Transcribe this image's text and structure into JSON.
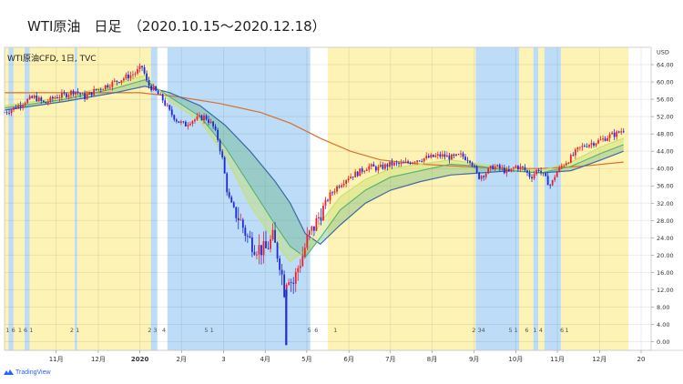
{
  "header": {
    "title": "WTI原油　日足　（2020.10.15～2020.12.18）"
  },
  "chart_label": "WTI原油CFD, 1日, TVC",
  "branding": "TradingView",
  "colors": {
    "blue_band": "#bcdcf8",
    "yellow_band": "#fdf3b5",
    "candle_up": "#e8222e",
    "candle_down": "#1f2bd6",
    "ma_short": "#c7e070",
    "ma_mid": "#59b06f",
    "ma_long": "#3d6aa8",
    "ma_200": "#d8702a"
  },
  "chart_data": {
    "type": "candlestick",
    "title": "",
    "yaxis_unit": "USD",
    "ylim": [
      -2,
      68
    ],
    "yticks": [
      0,
      4,
      8,
      12,
      16,
      20,
      24,
      28,
      32,
      36,
      40,
      44,
      48,
      52,
      56,
      60,
      64
    ],
    "ytick_labels": [
      "0.00",
      "4.00",
      "8.00",
      "12.00",
      "16.00",
      "20.00",
      "24.00",
      "28.00",
      "32.00",
      "36.00",
      "40.00",
      "44.00",
      "48.00",
      "52.00",
      "56.00",
      "60.00",
      "64.00"
    ],
    "xlim": [
      2019.73,
      2021.02
    ],
    "xticks": [
      {
        "label": "11月",
        "x": 2019.833
      },
      {
        "label": "12月",
        "x": 2019.917
      },
      {
        "label": "2020",
        "x": 2020.0
      },
      {
        "label": "2月",
        "x": 2020.083
      },
      {
        "label": "3",
        "x": 2020.167
      },
      {
        "label": "4月",
        "x": 2020.25
      },
      {
        "label": "5月",
        "x": 2020.333
      },
      {
        "label": "6月",
        "x": 2020.417
      },
      {
        "label": "7月",
        "x": 2020.5
      },
      {
        "label": "8月",
        "x": 2020.583
      },
      {
        "label": "9月",
        "x": 2020.667
      },
      {
        "label": "10月",
        "x": 2020.75
      },
      {
        "label": "11月",
        "x": 2020.833
      },
      {
        "label": "12月",
        "x": 2020.917
      },
      {
        "label": "20",
        "x": 2021.0
      }
    ],
    "background_bands": [
      {
        "from": 2019.73,
        "to": 2019.738,
        "color": "yellow"
      },
      {
        "from": 2019.738,
        "to": 2019.748,
        "color": "blue"
      },
      {
        "from": 2019.748,
        "to": 2019.77,
        "color": "yellow"
      },
      {
        "from": 2019.77,
        "to": 2019.78,
        "color": "blue"
      },
      {
        "from": 2019.78,
        "to": 2019.87,
        "color": "yellow"
      },
      {
        "from": 2019.87,
        "to": 2019.875,
        "color": "blue"
      },
      {
        "from": 2019.875,
        "to": 2020.022,
        "color": "yellow"
      },
      {
        "from": 2020.022,
        "to": 2020.035,
        "color": "blue"
      },
      {
        "from": 2020.035,
        "to": 2020.055,
        "color": "white"
      },
      {
        "from": 2020.055,
        "to": 2020.34,
        "color": "blue"
      },
      {
        "from": 2020.34,
        "to": 2020.375,
        "color": "white"
      },
      {
        "from": 2020.375,
        "to": 2020.67,
        "color": "yellow"
      },
      {
        "from": 2020.67,
        "to": 2020.757,
        "color": "blue"
      },
      {
        "from": 2020.757,
        "to": 2020.785,
        "color": "yellow"
      },
      {
        "from": 2020.785,
        "to": 2020.795,
        "color": "blue"
      },
      {
        "from": 2020.795,
        "to": 2020.807,
        "color": "yellow"
      },
      {
        "from": 2020.807,
        "to": 2020.84,
        "color": "blue"
      },
      {
        "from": 2020.84,
        "to": 2020.975,
        "color": "yellow"
      }
    ],
    "band_labels": [
      {
        "text": "1 6",
        "x": 2019.742
      },
      {
        "text": "1 6 1",
        "x": 2019.772
      },
      {
        "text": "2 1",
        "x": 2019.87
      },
      {
        "text": "2 3",
        "x": 2020.025
      },
      {
        "text": "4",
        "x": 2020.048
      },
      {
        "text": "5 1",
        "x": 2020.138
      },
      {
        "text": "5",
        "x": 2020.338
      },
      {
        "text": "6",
        "x": 2020.352
      },
      {
        "text": "1",
        "x": 2020.39
      },
      {
        "text": "2 3",
        "x": 2020.672
      },
      {
        "text": "4",
        "x": 2020.685
      },
      {
        "text": "5 1",
        "x": 2020.745
      },
      {
        "text": "6",
        "x": 2020.772
      },
      {
        "text": "1",
        "x": 2020.788
      },
      {
        "text": "4",
        "x": 2020.8
      },
      {
        "text": "6",
        "x": 2020.842
      },
      {
        "text": "1",
        "x": 2020.852
      }
    ],
    "price_path": [
      [
        2019.73,
        53.0
      ],
      [
        2019.75,
        54.0
      ],
      [
        2019.77,
        55.5
      ],
      [
        2019.79,
        56.5
      ],
      [
        2019.81,
        55.0
      ],
      [
        2019.83,
        56.5
      ],
      [
        2019.85,
        57.0
      ],
      [
        2019.87,
        58.0
      ],
      [
        2019.89,
        56.5
      ],
      [
        2019.91,
        58.0
      ],
      [
        2019.93,
        59.0
      ],
      [
        2019.95,
        60.0
      ],
      [
        2019.97,
        61.0
      ],
      [
        2019.99,
        62.0
      ],
      [
        2020.005,
        63.5
      ],
      [
        2020.015,
        59.5
      ],
      [
        2020.03,
        58.0
      ],
      [
        2020.045,
        56.0
      ],
      [
        2020.06,
        53.0
      ],
      [
        2020.075,
        51.0
      ],
      [
        2020.09,
        50.0
      ],
      [
        2020.1,
        51.0
      ],
      [
        2020.115,
        51.5
      ],
      [
        2020.13,
        52.0
      ],
      [
        2020.145,
        50.0
      ],
      [
        2020.155,
        47.0
      ],
      [
        2020.165,
        42.0
      ],
      [
        2020.175,
        34.0
      ],
      [
        2020.185,
        31.0
      ],
      [
        2020.2,
        28.0
      ],
      [
        2020.215,
        24.0
      ],
      [
        2020.23,
        22.0
      ],
      [
        2020.25,
        21.0
      ],
      [
        2020.265,
        24.0
      ],
      [
        2020.28,
        18.0
      ],
      [
        2020.288,
        12.0
      ],
      [
        2020.295,
        16.0
      ],
      [
        2020.305,
        13.0
      ],
      [
        2020.315,
        17.0
      ],
      [
        2020.325,
        20.0
      ],
      [
        2020.335,
        24.0
      ],
      [
        2020.35,
        27.0
      ],
      [
        2020.365,
        31.0
      ],
      [
        2020.38,
        34.0
      ],
      [
        2020.395,
        36.0
      ],
      [
        2020.415,
        38.0
      ],
      [
        2020.435,
        39.0
      ],
      [
        2020.455,
        40.5
      ],
      [
        2020.475,
        40.0
      ],
      [
        2020.5,
        41.0
      ],
      [
        2020.525,
        41.0
      ],
      [
        2020.55,
        42.0
      ],
      [
        2020.575,
        42.5
      ],
      [
        2020.6,
        43.0
      ],
      [
        2020.625,
        42.5
      ],
      [
        2020.64,
        43.0
      ],
      [
        2020.66,
        42.0
      ],
      [
        2020.675,
        38.0
      ],
      [
        2020.69,
        39.0
      ],
      [
        2020.705,
        40.5
      ],
      [
        2020.72,
        40.0
      ],
      [
        2020.735,
        39.0
      ],
      [
        2020.75,
        40.5
      ],
      [
        2020.765,
        40.0
      ],
      [
        2020.78,
        38.0
      ],
      [
        2020.795,
        40.0
      ],
      [
        2020.81,
        37.5
      ],
      [
        2020.82,
        36.0
      ],
      [
        2020.83,
        39.0
      ],
      [
        2020.845,
        41.0
      ],
      [
        2020.86,
        42.5
      ],
      [
        2020.875,
        44.5
      ],
      [
        2020.89,
        45.5
      ],
      [
        2020.905,
        46.0
      ],
      [
        2020.92,
        46.5
      ],
      [
        2020.935,
        47.5
      ],
      [
        2020.95,
        48.0
      ],
      [
        2020.965,
        49.0
      ]
    ],
    "special_wicks": [
      {
        "x": 2020.292,
        "high": 12.0,
        "low": -0.8
      }
    ],
    "series": [
      {
        "key": "ma_200",
        "values": [
          [
            2019.73,
            57.5
          ],
          [
            2019.85,
            57.5
          ],
          [
            2020.0,
            57.5
          ],
          [
            2020.08,
            56.5
          ],
          [
            2020.16,
            55.0
          ],
          [
            2020.24,
            53.0
          ],
          [
            2020.3,
            50.5
          ],
          [
            2020.36,
            47.0
          ],
          [
            2020.42,
            44.0
          ],
          [
            2020.48,
            42.0
          ],
          [
            2020.56,
            41.0
          ],
          [
            2020.64,
            40.5
          ],
          [
            2020.72,
            40.0
          ],
          [
            2020.8,
            40.0
          ],
          [
            2020.88,
            40.5
          ],
          [
            2020.965,
            41.5
          ]
        ]
      },
      {
        "key": "ma_long",
        "values": [
          [
            2019.73,
            53.5
          ],
          [
            2019.85,
            55.5
          ],
          [
            2019.95,
            57.5
          ],
          [
            2020.01,
            59.0
          ],
          [
            2020.06,
            57.5
          ],
          [
            2020.12,
            54.5
          ],
          [
            2020.17,
            50.0
          ],
          [
            2020.22,
            44.0
          ],
          [
            2020.27,
            37.0
          ],
          [
            2020.3,
            32.0
          ],
          [
            2020.33,
            25.0
          ],
          [
            2020.36,
            22.5
          ],
          [
            2020.4,
            27.0
          ],
          [
            2020.45,
            32.0
          ],
          [
            2020.5,
            35.0
          ],
          [
            2020.56,
            37.0
          ],
          [
            2020.62,
            38.5
          ],
          [
            2020.68,
            39.0
          ],
          [
            2020.74,
            39.5
          ],
          [
            2020.8,
            39.0
          ],
          [
            2020.86,
            39.5
          ],
          [
            2020.92,
            42.0
          ],
          [
            2020.965,
            44.0
          ]
        ]
      },
      {
        "key": "ma_mid",
        "values": [
          [
            2019.73,
            54.0
          ],
          [
            2019.85,
            56.0
          ],
          [
            2019.95,
            58.5
          ],
          [
            2020.01,
            60.5
          ],
          [
            2020.06,
            56.5
          ],
          [
            2020.12,
            52.0
          ],
          [
            2020.17,
            45.0
          ],
          [
            2020.22,
            36.0
          ],
          [
            2020.27,
            27.0
          ],
          [
            2020.3,
            22.0
          ],
          [
            2020.33,
            19.5
          ],
          [
            2020.36,
            24.0
          ],
          [
            2020.4,
            30.5
          ],
          [
            2020.45,
            35.0
          ],
          [
            2020.5,
            38.0
          ],
          [
            2020.56,
            39.5
          ],
          [
            2020.62,
            41.0
          ],
          [
            2020.68,
            40.5
          ],
          [
            2020.74,
            39.5
          ],
          [
            2020.8,
            39.0
          ],
          [
            2020.86,
            40.5
          ],
          [
            2020.92,
            43.5
          ],
          [
            2020.965,
            45.5
          ]
        ]
      },
      {
        "key": "ma_short",
        "values": [
          [
            2019.73,
            54.5
          ],
          [
            2019.85,
            56.5
          ],
          [
            2019.95,
            59.5
          ],
          [
            2020.01,
            61.5
          ],
          [
            2020.06,
            55.5
          ],
          [
            2020.12,
            51.0
          ],
          [
            2020.17,
            43.0
          ],
          [
            2020.22,
            31.5
          ],
          [
            2020.27,
            23.0
          ],
          [
            2020.3,
            18.5
          ],
          [
            2020.33,
            21.0
          ],
          [
            2020.36,
            27.5
          ],
          [
            2020.4,
            33.5
          ],
          [
            2020.45,
            37.5
          ],
          [
            2020.5,
            40.0
          ],
          [
            2020.56,
            41.0
          ],
          [
            2020.62,
            42.0
          ],
          [
            2020.68,
            41.0
          ],
          [
            2020.74,
            40.0
          ],
          [
            2020.8,
            39.5
          ],
          [
            2020.86,
            41.5
          ],
          [
            2020.92,
            45.0
          ],
          [
            2020.965,
            47.0
          ]
        ]
      }
    ]
  }
}
